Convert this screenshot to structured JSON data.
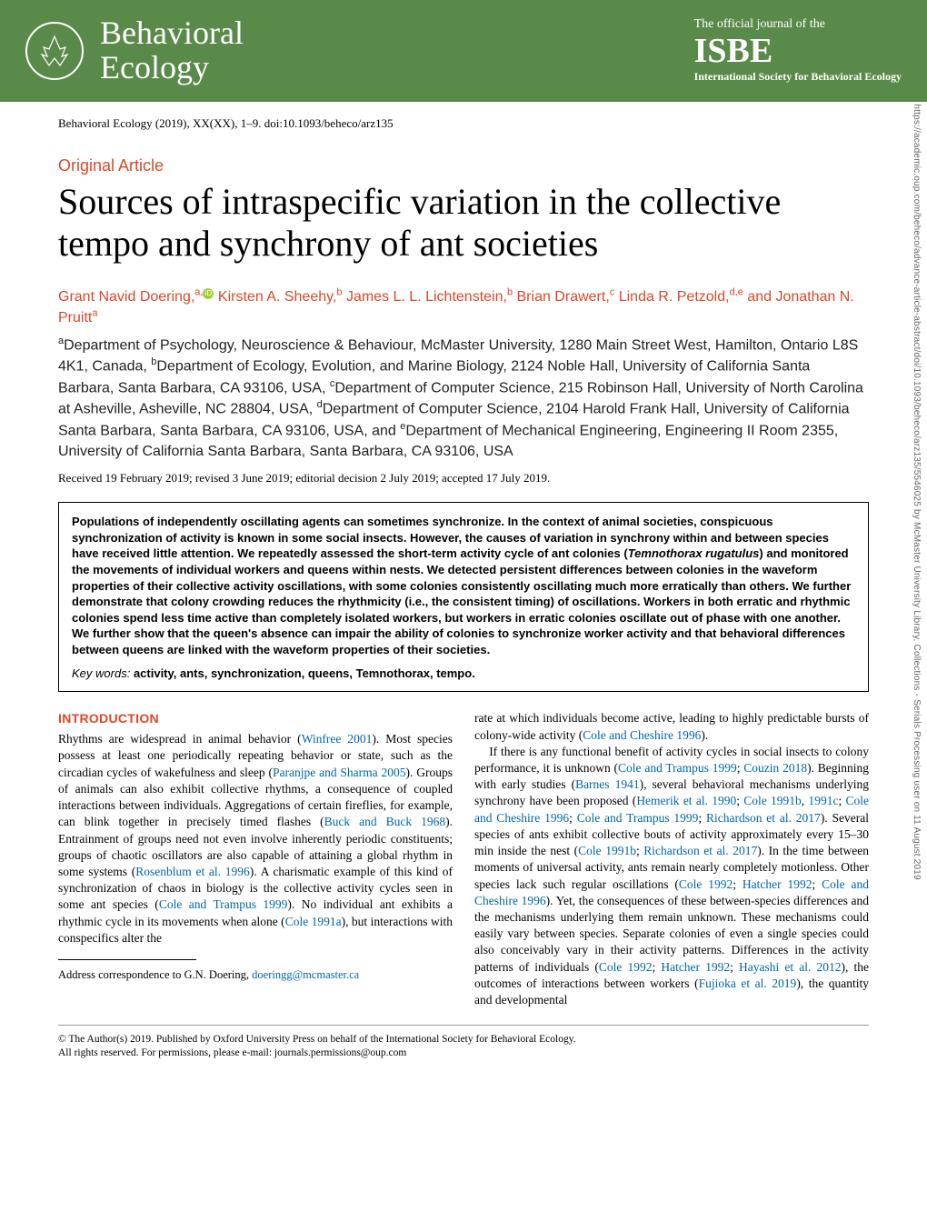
{
  "header": {
    "journal_line1": "Behavioral",
    "journal_line2": "Ecology",
    "tagline": "The official journal of the",
    "acronym": "ISBE",
    "society_full": "International Society for Behavioral Ecology",
    "logo_color": "#ffffff",
    "bg_color": "#5a8a4a"
  },
  "citation": "Behavioral Ecology (2019), XX(XX), 1–9. doi:10.1093/beheco/arz135",
  "article_type": "Original Article",
  "title": "Sources of intraspecific variation in the collective tempo and synchrony of ant societies",
  "authors_html": "Grant Navid Doering,<sup>a,</sup>",
  "authors_rest": " Kirsten A. Sheehy,<sup>b</sup> James L. L. Lichtenstein,<sup>b</sup> Brian Drawert,<sup>c</sup> Linda R. Petzold,<sup>d,e</sup> and Jonathan N. Pruitt<sup>a</sup>",
  "affiliations": "<sup>a</sup>Department of Psychology, Neuroscience & Behaviour, McMaster University, 1280 Main Street West, Hamilton, Ontario L8S 4K1, Canada, <sup>b</sup>Department of Ecology, Evolution, and Marine Biology, 2124 Noble Hall, University of California Santa Barbara, Santa Barbara, CA 93106, USA, <sup>c</sup>Department of Computer Science, 215 Robinson Hall, University of North Carolina at Asheville, Asheville, NC 28804, USA, <sup>d</sup>Department of Computer Science, 2104 Harold Frank Hall, University of California Santa Barbara, Santa Barbara, CA 93106, USA, and <sup>e</sup>Department of Mechanical Engineering, Engineering II Room 2355, University of California Santa Barbara, Santa Barbara, CA 93106, USA",
  "dates": "Received 19 February 2019; revised 3 June 2019; editorial decision 2 July 2019; accepted 17 July 2019.",
  "abstract": "Populations of independently oscillating agents can sometimes synchronize. In the context of animal societies, conspicuous synchronization of activity is known in some social insects. However, the causes of variation in synchrony within and between species have received little attention. We repeatedly assessed the short-term activity cycle of ant colonies (<i>Temnothorax rugatulus</i>) and monitored the movements of individual workers and queens within nests. We detected persistent differences between colonies in the waveform properties of their collective activity oscillations, with some colonies consistently oscillating much more erratically than others. We further demonstrate that colony crowding reduces the rhythmicity (i.e., the consistent timing) of oscillations. Workers in both erratic and rhythmic colonies spend less time active than completely isolated workers, but workers in erratic colonies oscillate out of phase with one another. We further show that the queen's absence can impair the ability of colonies to synchronize worker activity and that behavioral differences between queens are linked with the waveform properties of their societies.",
  "keywords_label": "Key words:",
  "keywords": "activity, ants, synchronization, queens, Temnothorax, tempo.",
  "section_head": "INTRODUCTION",
  "col1_p1a": "Rhythms are widespread in animal behavior (",
  "col1_ref1": "Winfree 2001",
  "col1_p1b": "). Most species possess at least one periodically repeating behavior or state, such as the circadian cycles of wakefulness and sleep (",
  "col1_ref2": "Paranjpe and Sharma 2005",
  "col1_p1c": "). Groups of animals can also exhibit collective rhythms, a consequence of coupled interactions between individuals. Aggregations of certain fireflies, for example, can blink together in precisely timed flashes (",
  "col1_ref3": "Buck and Buck 1968",
  "col1_p1d": "). Entrainment of groups need not even involve inherently periodic constituents; groups of chaotic oscillators are also capable of attaining a global rhythm in some systems (",
  "col1_ref4": "Rosenblum et al. 1996",
  "col1_p1e": "). A charismatic example of this kind of synchronization of chaos in biology is the collective activity cycles seen in some ant species (",
  "col1_ref5": "Cole and Trampus 1999",
  "col1_p1f": "). No individual ant exhibits a rhythmic cycle in its movements when alone (",
  "col1_ref6": "Cole 1991a",
  "col1_p1g": "), but interactions with conspecifics alter the",
  "correspondence_a": "Address correspondence to G.N. Doering, ",
  "correspondence_email": "doeringg@mcmaster.ca",
  "col2_p1a": "rate at which individuals become active, leading to highly predictable bursts of colony-wide activity (",
  "col2_ref1": "Cole and Cheshire 1996",
  "col2_p1b": ").",
  "col2_p2a": "If there is any functional benefit of activity cycles in social insects to colony performance, it is unknown (",
  "col2_ref2": "Cole and Trampus 1999",
  "col2_sep1": "; ",
  "col2_ref3": "Couzin 2018",
  "col2_p2b": "). Beginning with early studies (",
  "col2_ref4": "Barnes 1941",
  "col2_p2c": "), several behavioral mechanisms underlying synchrony have been proposed (",
  "col2_ref5": "Hemerik et al. 1990",
  "col2_ref6": "Cole 1991b",
  "col2_ref7": "1991c",
  "col2_ref8": "Cole and Cheshire 1996",
  "col2_ref9": "Cole and Trampus 1999",
  "col2_ref10": "Richardson et al. 2017",
  "col2_p2d": "). Several species of ants exhibit collective bouts of activity approximately every 15–30 min inside the nest (",
  "col2_ref11": "Cole 1991b",
  "col2_ref12": "Richardson et al. 2017",
  "col2_p2e": "). In the time between moments of universal activity, ants remain nearly completely motionless. Other species lack such regular oscillations (",
  "col2_ref13": "Cole 1992",
  "col2_ref14": "Hatcher 1992",
  "col2_ref15": "Cole and Cheshire 1996",
  "col2_p2f": "). Yet, the consequences of these between-species differences and the mechanisms underlying them remain unknown. These mechanisms could easily vary between species. Separate colonies of even a single species could also conceivably vary in their activity patterns. Differences in the activity patterns of individuals (",
  "col2_ref16": "Cole 1992",
  "col2_ref17": "Hatcher 1992",
  "col2_ref18": "Hayashi et al. 2012",
  "col2_p2g": "), the outcomes of interactions between workers (",
  "col2_ref19": "Fujioka et al. 2019",
  "col2_p2h": "), the quantity and developmental",
  "copyright_l1": "© The Author(s) 2019. Published by Oxford University Press on behalf of the International Society for Behavioral Ecology.",
  "copyright_l2": "All rights reserved. For permissions, please e-mail: journals.permissions@oup.com",
  "side_text": "Downloaded from https://academic.oup.com/beheco/advance-article-abstract/doi/10.1093/beheco/arz135/5546025 by McMaster University Library, Collections - Serials Processing user on 11 August 2019",
  "colors": {
    "accent": "#d9492a",
    "link": "#0066aa",
    "header_bg": "#5a8a4a"
  }
}
